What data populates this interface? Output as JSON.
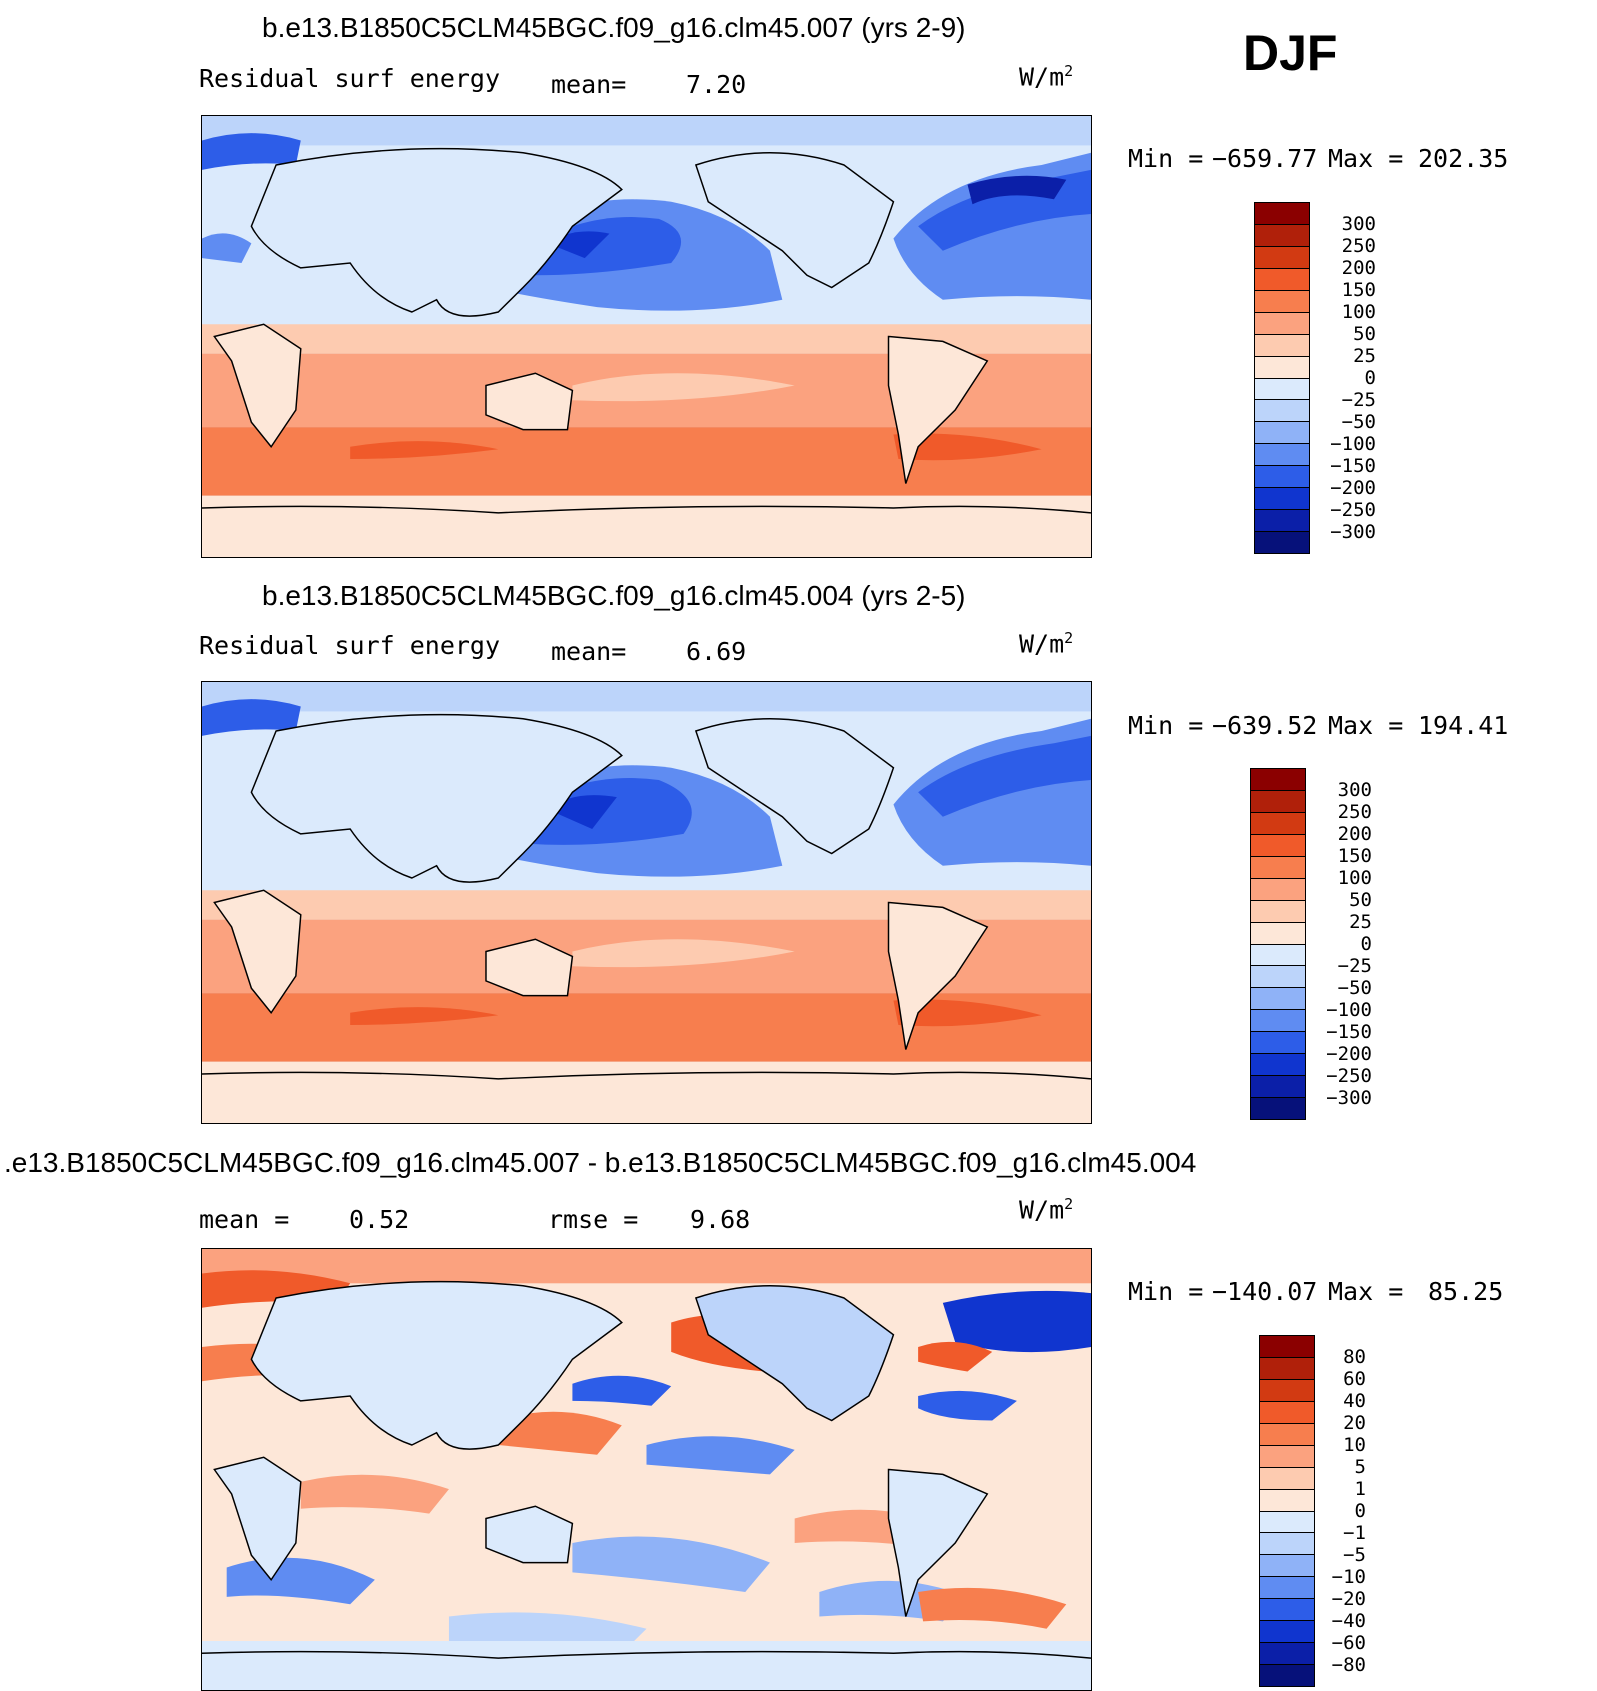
{
  "season": "DJF",
  "panels": [
    {
      "title": "b.e13.B1850C5CLM45BGC.f09_g16.clm45.007 (yrs 2-9)",
      "variable": "Residual surf energy",
      "stat1_label": "mean=",
      "stat1_value": "7.20",
      "stat2_label": "",
      "stat2_value": "",
      "units": "W/m",
      "units_exp": "2",
      "min_label": "Min =",
      "min_value": "−659.77",
      "max_label": "Max =",
      "max_value": "202.35",
      "colorbar": {
        "levels": [
          "300",
          "250",
          "200",
          "150",
          "100",
          "50",
          "25",
          "0",
          "−25",
          "−50",
          "−100",
          "−150",
          "−200",
          "−250",
          "−300"
        ],
        "colors": [
          "#8b0000",
          "#b0200a",
          "#d23a12",
          "#f05a2a",
          "#f77e4e",
          "#fba27f",
          "#fdcbb0",
          "#fde7d8",
          "#dbeafc",
          "#bcd4fa",
          "#8fb2f7",
          "#5f8cf2",
          "#2d5de8",
          "#1035cf",
          "#0b1fa8",
          "#06117a"
        ]
      }
    },
    {
      "title": "b.e13.B1850C5CLM45BGC.f09_g16.clm45.004 (yrs 2-5)",
      "variable": "Residual surf energy",
      "stat1_label": "mean=",
      "stat1_value": "6.69",
      "stat2_label": "",
      "stat2_value": "",
      "units": "W/m",
      "units_exp": "2",
      "min_label": "Min =",
      "min_value": "−639.52",
      "max_label": "Max =",
      "max_value": "194.41",
      "colorbar": {
        "levels": [
          "300",
          "250",
          "200",
          "150",
          "100",
          "50",
          "25",
          "0",
          "−25",
          "−50",
          "−100",
          "−150",
          "−200",
          "−250",
          "−300"
        ],
        "colors": [
          "#8b0000",
          "#b0200a",
          "#d23a12",
          "#f05a2a",
          "#f77e4e",
          "#fba27f",
          "#fdcbb0",
          "#fde7d8",
          "#dbeafc",
          "#bcd4fa",
          "#8fb2f7",
          "#5f8cf2",
          "#2d5de8",
          "#1035cf",
          "#0b1fa8",
          "#06117a"
        ]
      }
    },
    {
      "title": ".e13.B1850C5CLM45BGC.f09_g16.clm45.007 - b.e13.B1850C5CLM45BGC.f09_g16.clm45.004",
      "variable": "",
      "stat1_label": "mean =",
      "stat1_value": "0.52",
      "stat2_label": "rmse =",
      "stat2_value": "9.68",
      "units": "W/m",
      "units_exp": "2",
      "min_label": "Min =",
      "min_value": "−140.07",
      "max_label": "Max =",
      "max_value": "85.25",
      "colorbar": {
        "levels": [
          "80",
          "60",
          "40",
          "20",
          "10",
          "5",
          "1",
          "0",
          "−1",
          "−5",
          "−10",
          "−20",
          "−40",
          "−60",
          "−80"
        ],
        "colors": [
          "#8b0000",
          "#b0200a",
          "#d23a12",
          "#f05a2a",
          "#f77e4e",
          "#fba27f",
          "#fdcbb0",
          "#fde7d8",
          "#dbeafc",
          "#bcd4fa",
          "#8fb2f7",
          "#5f8cf2",
          "#2d5de8",
          "#1035cf",
          "#0b1fa8",
          "#06117a"
        ]
      }
    }
  ]
}
